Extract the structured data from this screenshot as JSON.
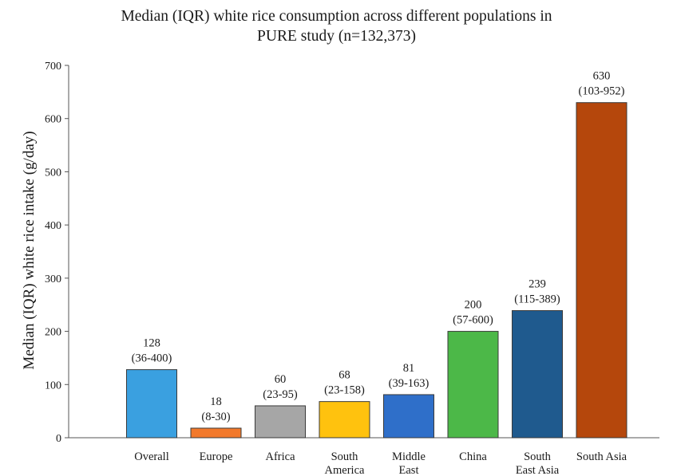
{
  "chart_data": {
    "type": "bar",
    "title_lines": [
      "Median (IQR) white rice consumption across different populations in",
      "PURE study (n=132,373)"
    ],
    "ylabel": "Median (IQR) white rice intake (g/day)",
    "xlabel": "",
    "ylim": [
      0,
      700
    ],
    "yticks": [
      0,
      100,
      200,
      300,
      400,
      500,
      600,
      700
    ],
    "grid": false,
    "categories": [
      [
        "Overall"
      ],
      [
        "Europe"
      ],
      [
        "Africa"
      ],
      [
        "South",
        "America"
      ],
      [
        "Middle",
        "East"
      ],
      [
        "China"
      ],
      [
        "South",
        "East Asia"
      ],
      [
        "South Asia"
      ]
    ],
    "values": [
      128,
      18,
      60,
      68,
      81,
      200,
      239,
      630
    ],
    "data_labels": [
      [
        "128",
        "(36-400)"
      ],
      [
        "18",
        "(8-30)"
      ],
      [
        "60",
        "(23-95)"
      ],
      [
        "68",
        "(23-158)"
      ],
      [
        "81",
        "(39-163)"
      ],
      [
        "200",
        "(57-600)"
      ],
      [
        "239",
        "(115-389)"
      ],
      [
        "630",
        "(103-952)"
      ]
    ],
    "colors": [
      "#3aa0e0",
      "#f2792b",
      "#a6a6a6",
      "#ffc20e",
      "#2f6fc9",
      "#4cb848",
      "#1f5a8e",
      "#b5470c"
    ]
  }
}
